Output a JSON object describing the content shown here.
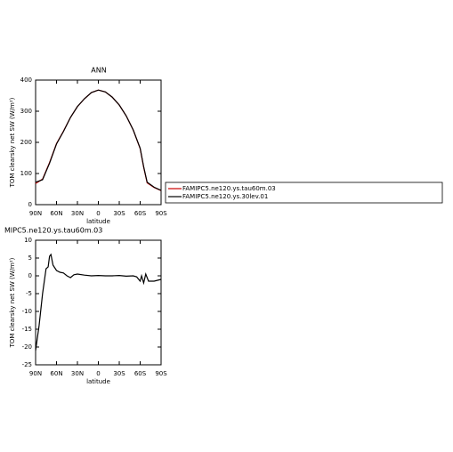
{
  "chart_data": [
    {
      "type": "line",
      "title": "ANN",
      "xlabel": "latitude",
      "ylabel": "TOM clearsky net SW (W/m²)",
      "xlim": [
        90,
        -90
      ],
      "ylim": [
        0,
        400
      ],
      "xticks": [
        {
          "value": 90,
          "label": "90N"
        },
        {
          "value": 60,
          "label": "60N"
        },
        {
          "value": 30,
          "label": "30N"
        },
        0,
        {
          "value": -30,
          "label": "30S"
        },
        {
          "value": -60,
          "label": "60S"
        },
        {
          "value": -90,
          "label": "90S"
        }
      ],
      "yticks": [
        0,
        100,
        200,
        300,
        400
      ],
      "x": [
        90,
        80,
        70,
        60,
        50,
        40,
        30,
        20,
        10,
        0,
        -10,
        -20,
        -30,
        -40,
        -50,
        -60,
        -65,
        -70,
        -80,
        -90
      ],
      "series": [
        {
          "name": "FAMIPC5.ne120.ys.tau60m.03",
          "color": "#cc0000",
          "values": [
            68,
            82,
            135,
            196,
            236,
            280,
            315,
            340,
            360,
            368,
            362,
            345,
            320,
            285,
            240,
            180,
            120,
            70,
            55,
            45
          ]
        },
        {
          "name": "FAMIPC5.ne120.ys.30lev.01",
          "color": "#000000",
          "values": [
            72,
            80,
            133,
            195,
            235,
            280,
            315,
            340,
            360,
            368,
            362,
            345,
            320,
            285,
            240,
            181,
            122,
            72,
            56,
            46
          ]
        }
      ]
    },
    {
      "type": "line",
      "title": "MIPC5.ne120.ys.tau60m.03",
      "xlabel": "latitude",
      "ylabel": "TOM clearsky net SW (W/m²)",
      "xlim": [
        90,
        -90
      ],
      "ylim": [
        -25,
        10
      ],
      "xticks": [
        {
          "value": 90,
          "label": "90N"
        },
        {
          "value": 60,
          "label": "60N"
        },
        {
          "value": 30,
          "label": "30N"
        },
        0,
        {
          "value": -30,
          "label": "30S"
        },
        {
          "value": -60,
          "label": "60S"
        },
        {
          "value": -90,
          "label": "90S"
        }
      ],
      "yticks": [
        10,
        5,
        0,
        -5,
        -10,
        -15,
        -20,
        -25
      ],
      "x": [
        90,
        85,
        80,
        75,
        72,
        70,
        68,
        65,
        60,
        55,
        50,
        45,
        40,
        35,
        30,
        20,
        10,
        0,
        -10,
        -20,
        -30,
        -40,
        -50,
        -55,
        -60,
        -62,
        -65,
        -68,
        -72,
        -80,
        -90
      ],
      "series": [
        {
          "color": "#000000",
          "values": [
            -21,
            -14,
            -5,
            2,
            2.5,
            5.5,
            6,
            3,
            1.5,
            1,
            0.8,
            0,
            -0.5,
            0.3,
            0.5,
            0.2,
            0,
            0.1,
            0,
            0,
            0.1,
            -0.1,
            0,
            -0.3,
            -1.5,
            0,
            -2,
            0.5,
            -1.5,
            -1.5,
            -1
          ]
        }
      ]
    }
  ]
}
